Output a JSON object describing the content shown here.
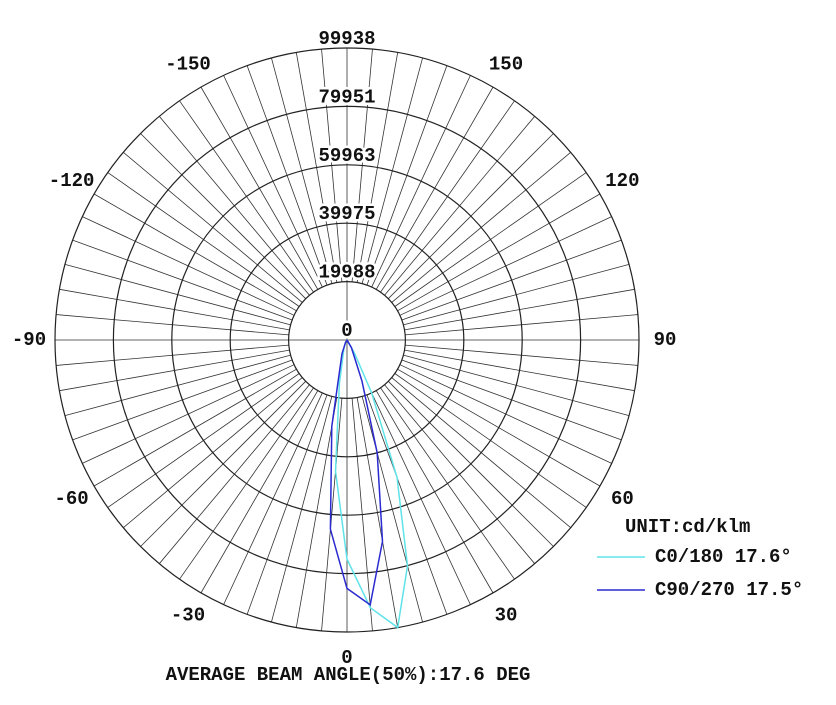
{
  "chart_data": {
    "type": "polar",
    "unit_label": "UNIT:cd/klm",
    "caption": "AVERAGE BEAM ANGLE(50%):17.6 DEG",
    "rlim": [
      0,
      99938
    ],
    "rticks": [
      0,
      19988,
      39975,
      59963,
      79951,
      99938
    ],
    "theta_ticks": [
      -150,
      -120,
      -90,
      -60,
      -30,
      0,
      30,
      60,
      90,
      120,
      150
    ],
    "series": [
      {
        "name": "C0/180 17.6°",
        "color": "#5fe3e8",
        "x": [
          -90,
          -30,
          -20,
          -10,
          -5,
          0,
          5,
          10,
          15,
          20,
          25,
          30,
          90
        ],
        "values": [
          0,
          1000,
          3000,
          15000,
          45000,
          75000,
          92000,
          99900,
          80000,
          50000,
          20000,
          5000,
          0
        ]
      },
      {
        "name": "C90/270 17.5°",
        "color": "#2a2ad0",
        "x": [
          -90,
          -30,
          -20,
          -10,
          -5,
          0,
          5,
          10,
          15,
          20,
          30,
          90
        ],
        "values": [
          0,
          1000,
          5000,
          30000,
          65000,
          85000,
          91000,
          70000,
          40000,
          15000,
          3000,
          0
        ]
      }
    ]
  }
}
